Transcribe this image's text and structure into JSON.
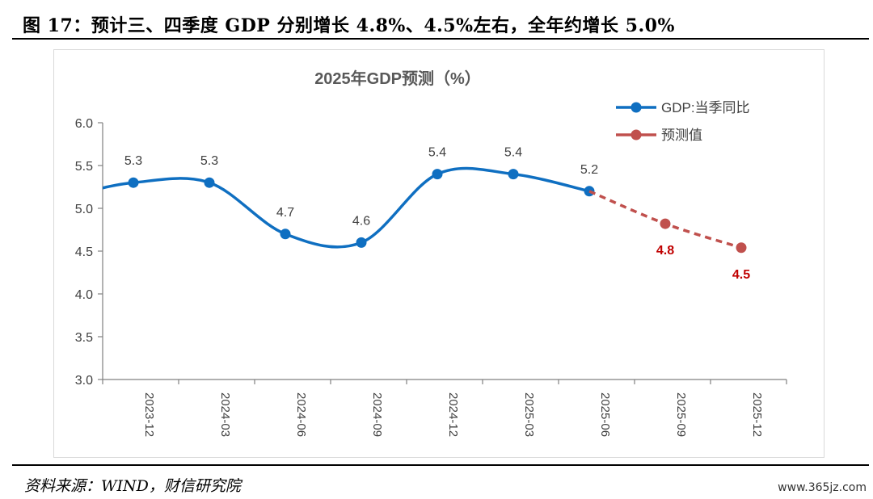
{
  "figure": {
    "title": "图 17：预计三、四季度 GDP 分别增长 4.8%、4.5%左右，全年约增长 5.0%",
    "source": "资料来源：WIND，财信研究院",
    "watermark": "www.365jz.com"
  },
  "chart_data": {
    "type": "line",
    "title": "2025年GDP预测（%）",
    "xlabel": "",
    "ylabel": "",
    "ylim": [
      3.0,
      6.0
    ],
    "yticks": [
      "3.0",
      "3.5",
      "4.0",
      "4.5",
      "5.0",
      "5.5",
      "6.0"
    ],
    "categories": [
      "2023-12",
      "2024-03",
      "2024-06",
      "2024-09",
      "2024-12",
      "2025-03",
      "2025-06",
      "2025-09",
      "2025-12"
    ],
    "grid": false,
    "legend": "top-right",
    "series": [
      {
        "name": "GDP:当季同比",
        "color": "#0f6fc1",
        "style": "solid-smooth",
        "values": [
          5.3,
          5.3,
          4.7,
          4.6,
          5.4,
          5.4,
          5.2,
          null,
          null
        ],
        "labels": [
          "5.3",
          "5.3",
          "4.7",
          "4.6",
          "5.4",
          "5.4",
          "5.2",
          "",
          ""
        ]
      },
      {
        "name": "预测值",
        "color": "#c0504d",
        "label_color": "#c00000",
        "style": "dashed",
        "values": [
          null,
          null,
          null,
          null,
          null,
          null,
          5.2,
          4.82,
          4.54
        ],
        "labels": [
          "",
          "",
          "",
          "",
          "",
          "",
          "",
          "4.8",
          "4.5"
        ]
      }
    ]
  }
}
